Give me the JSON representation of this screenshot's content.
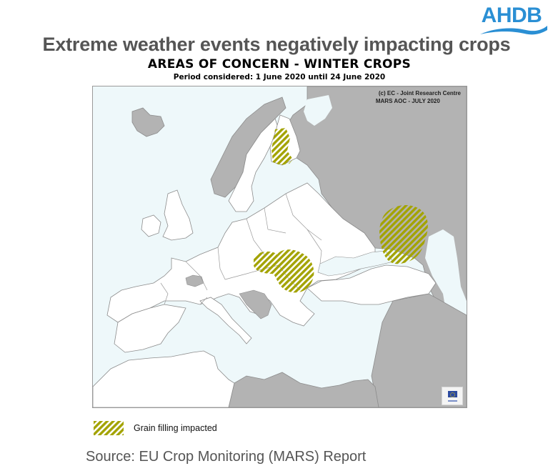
{
  "logo": {
    "text": "AHDB",
    "color": "#2a8fd4"
  },
  "headline": "Extreme weather events negatively impacting crops",
  "map": {
    "title": "AREAS OF CONCERN - WINTER CROPS",
    "period": "Period considered: 1 June 2020 until 24 June 2020",
    "credit_line1": "(c) EC - Joint Research Centre",
    "credit_line2": "MARS AOC - JULY 2020",
    "colors": {
      "sea": "#eef8fa",
      "covered_land": "#ffffff",
      "uncovered_land": "#b3b3b3",
      "border": "#8c8c8c",
      "hatch": "#a3a300"
    },
    "areas_of_concern": [
      {
        "region": "Southern Finland",
        "category": "Grain filling impacted"
      },
      {
        "region": "Hungary / Romania",
        "category": "Grain filling impacted"
      },
      {
        "region": "Southern Russia",
        "category": "Grain filling impacted"
      }
    ]
  },
  "legend": {
    "items": [
      {
        "label": "Grain filling impacted",
        "pattern": "olive-diagonal-hatch"
      }
    ]
  },
  "source": "Source: EU Crop Monitoring (MARS) Report"
}
